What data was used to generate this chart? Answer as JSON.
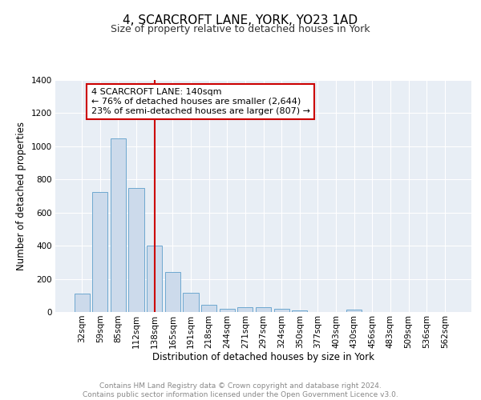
{
  "title": "4, SCARCROFT LANE, YORK, YO23 1AD",
  "subtitle": "Size of property relative to detached houses in York",
  "xlabel": "Distribution of detached houses by size in York",
  "ylabel": "Number of detached properties",
  "categories": [
    "32sqm",
    "59sqm",
    "85sqm",
    "112sqm",
    "138sqm",
    "165sqm",
    "191sqm",
    "218sqm",
    "244sqm",
    "271sqm",
    "297sqm",
    "324sqm",
    "350sqm",
    "377sqm",
    "403sqm",
    "430sqm",
    "456sqm",
    "483sqm",
    "509sqm",
    "536sqm",
    "562sqm"
  ],
  "values": [
    110,
    725,
    1050,
    750,
    400,
    240,
    115,
    45,
    20,
    30,
    30,
    20,
    10,
    0,
    0,
    15,
    0,
    0,
    0,
    0,
    0
  ],
  "bar_color": "#ccdaeb",
  "bar_edge_color": "#6ea8d0",
  "bar_linewidth": 0.7,
  "marker_idx": 4,
  "marker_label": "4 SCARCROFT LANE: 140sqm",
  "annotation_line1": "← 76% of detached houses are smaller (2,644)",
  "annotation_line2": "23% of semi-detached houses are larger (807) →",
  "marker_color": "#cc0000",
  "ylim": [
    0,
    1400
  ],
  "yticks": [
    0,
    200,
    400,
    600,
    800,
    1000,
    1200,
    1400
  ],
  "bg_color": "#e8eef5",
  "grid_color": "#ffffff",
  "footer_text": "Contains HM Land Registry data © Crown copyright and database right 2024.\nContains public sector information licensed under the Open Government Licence v3.0.",
  "title_fontsize": 11,
  "subtitle_fontsize": 9,
  "axis_label_fontsize": 8.5,
  "tick_fontsize": 7.5,
  "annotation_fontsize": 8,
  "footer_fontsize": 6.5
}
